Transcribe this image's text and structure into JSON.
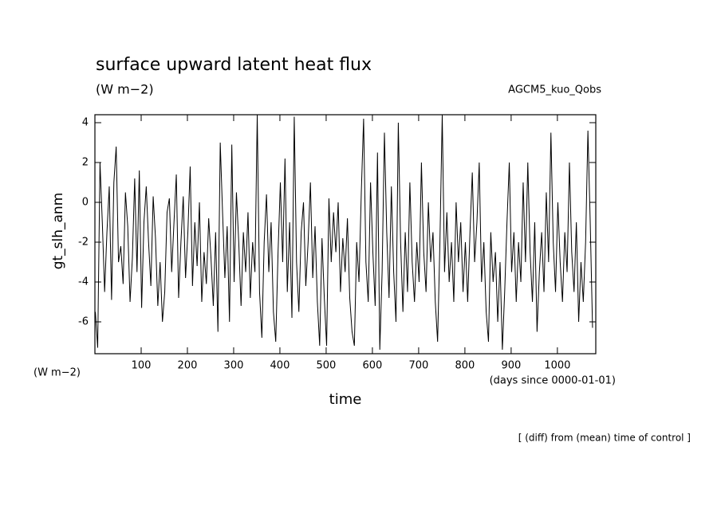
{
  "chart_data": {
    "type": "line",
    "title": "surface upward latent heat flux",
    "subtitle": "(W m−2)",
    "annotation_right": "AGCM5_kuo_Qobs",
    "y_label": "gt_slh_anm",
    "y_unit": "(W m−2)",
    "x_unit": "(days since 0000-01-01)",
    "x_label": "time",
    "note": "[ (diff) from (mean) time of control ]",
    "color": "#000000",
    "xlim": [
      0,
      1083
    ],
    "ylim": [
      -7.6,
      4.4
    ],
    "xticks": [
      100,
      200,
      300,
      400,
      500,
      600,
      700,
      800,
      900,
      1000
    ],
    "yticks": [
      4,
      2,
      0,
      -2,
      -4,
      -6
    ],
    "x": [
      1,
      6,
      11,
      16,
      21,
      26,
      31,
      36,
      41,
      46,
      51,
      56,
      61,
      66,
      71,
      76,
      81,
      86,
      91,
      96,
      101,
      106,
      111,
      116,
      121,
      126,
      131,
      136,
      141,
      146,
      151,
      156,
      161,
      166,
      171,
      176,
      181,
      186,
      191,
      196,
      201,
      206,
      211,
      216,
      221,
      226,
      231,
      236,
      241,
      246,
      251,
      256,
      261,
      266,
      271,
      276,
      281,
      286,
      291,
      296,
      301,
      306,
      311,
      316,
      321,
      326,
      331,
      336,
      341,
      346,
      351,
      356,
      361,
      366,
      371,
      376,
      381,
      386,
      391,
      396,
      401,
      406,
      411,
      416,
      421,
      426,
      431,
      436,
      441,
      446,
      451,
      456,
      461,
      466,
      471,
      476,
      481,
      486,
      491,
      496,
      501,
      506,
      511,
      516,
      521,
      526,
      531,
      536,
      541,
      546,
      551,
      556,
      561,
      566,
      571,
      576,
      581,
      586,
      591,
      596,
      601,
      606,
      611,
      616,
      621,
      626,
      631,
      636,
      641,
      646,
      651,
      656,
      661,
      666,
      671,
      676,
      681,
      686,
      691,
      696,
      701,
      706,
      711,
      716,
      721,
      726,
      731,
      736,
      741,
      746,
      751,
      756,
      761,
      766,
      771,
      776,
      781,
      786,
      791,
      796,
      801,
      806,
      811,
      816,
      821,
      826,
      831,
      836,
      841,
      846,
      851,
      856,
      861,
      866,
      871,
      876,
      881,
      886,
      891,
      896,
      901,
      906,
      911,
      916,
      921,
      926,
      931,
      936,
      941,
      946,
      951,
      956,
      961,
      966,
      971,
      976,
      981,
      986,
      991,
      996,
      1001,
      1006,
      1011,
      1016,
      1021,
      1026,
      1031,
      1036,
      1041,
      1046,
      1051,
      1056,
      1061,
      1066,
      1071,
      1076
    ],
    "values": [
      -5.5,
      -7.3,
      2.0,
      -1.0,
      -4.5,
      -1.5,
      0.8,
      -4.9,
      1.0,
      2.8,
      -3.0,
      -2.2,
      -4.1,
      0.5,
      -1.2,
      -5.0,
      -2.8,
      1.2,
      -3.5,
      1.6,
      -5.3,
      -1.0,
      0.8,
      -2.0,
      -4.2,
      0.3,
      -1.8,
      -5.2,
      -3.0,
      -6.0,
      -4.5,
      -0.5,
      0.2,
      -3.5,
      -1.0,
      1.4,
      -4.8,
      -2.0,
      0.3,
      -3.8,
      -1.5,
      1.8,
      -4.2,
      -1.0,
      -3.2,
      0.0,
      -5.0,
      -2.5,
      -4.1,
      -0.8,
      -2.8,
      -5.2,
      -1.5,
      -6.5,
      3.0,
      -0.5,
      -3.8,
      -1.2,
      -6.0,
      2.9,
      -4.0,
      0.5,
      -2.0,
      -5.2,
      -1.5,
      -3.5,
      -0.5,
      -4.8,
      -2.0,
      -3.5,
      4.4,
      -4.5,
      -6.8,
      -2.0,
      0.4,
      -3.5,
      -1.0,
      -5.5,
      -7.0,
      -2.5,
      1.0,
      -3.0,
      2.2,
      -4.5,
      -1.0,
      -5.8,
      4.3,
      -3.0,
      -5.5,
      -1.5,
      0.0,
      -4.2,
      -2.0,
      1.0,
      -3.8,
      -1.2,
      -5.0,
      -7.2,
      -1.8,
      -4.8,
      -7.2,
      0.2,
      -3.0,
      -0.5,
      -2.5,
      0.0,
      -4.5,
      -1.8,
      -3.5,
      -0.8,
      -4.8,
      -6.5,
      -7.2,
      -2.0,
      -4.0,
      0.5,
      4.2,
      -3.0,
      -5.0,
      1.0,
      -2.5,
      -5.2,
      2.5,
      -7.4,
      -3.5,
      3.5,
      -1.5,
      -4.8,
      0.8,
      -3.5,
      -6.0,
      4.0,
      -2.0,
      -5.5,
      -1.5,
      -4.5,
      1.0,
      -3.0,
      -5.0,
      -2.0,
      -4.0,
      2.0,
      -2.5,
      -4.5,
      0.0,
      -3.0,
      -1.5,
      -5.0,
      -7.0,
      -2.0,
      4.4,
      -3.5,
      -0.5,
      -4.0,
      -2.0,
      -5.0,
      0.0,
      -3.0,
      -1.0,
      -4.5,
      -2.0,
      -5.0,
      -1.5,
      1.5,
      -3.0,
      -1.0,
      2.0,
      -4.0,
      -2.0,
      -5.5,
      -7.0,
      -1.5,
      -4.0,
      -2.5,
      -6.0,
      -3.0,
      -7.4,
      -4.5,
      -1.0,
      2.0,
      -3.5,
      -1.5,
      -5.0,
      -2.0,
      -4.0,
      1.0,
      -3.0,
      2.0,
      -2.5,
      -5.0,
      -1.0,
      -6.5,
      -3.5,
      -1.5,
      -4.5,
      0.5,
      -3.0,
      3.5,
      -2.0,
      -4.5,
      0.0,
      -3.0,
      -5.0,
      -1.5,
      -3.5,
      2.0,
      -2.5,
      -4.5,
      -1.0,
      -6.0,
      -3.0,
      -5.0,
      -2.0,
      3.6,
      -1.0,
      -6.3
    ]
  }
}
